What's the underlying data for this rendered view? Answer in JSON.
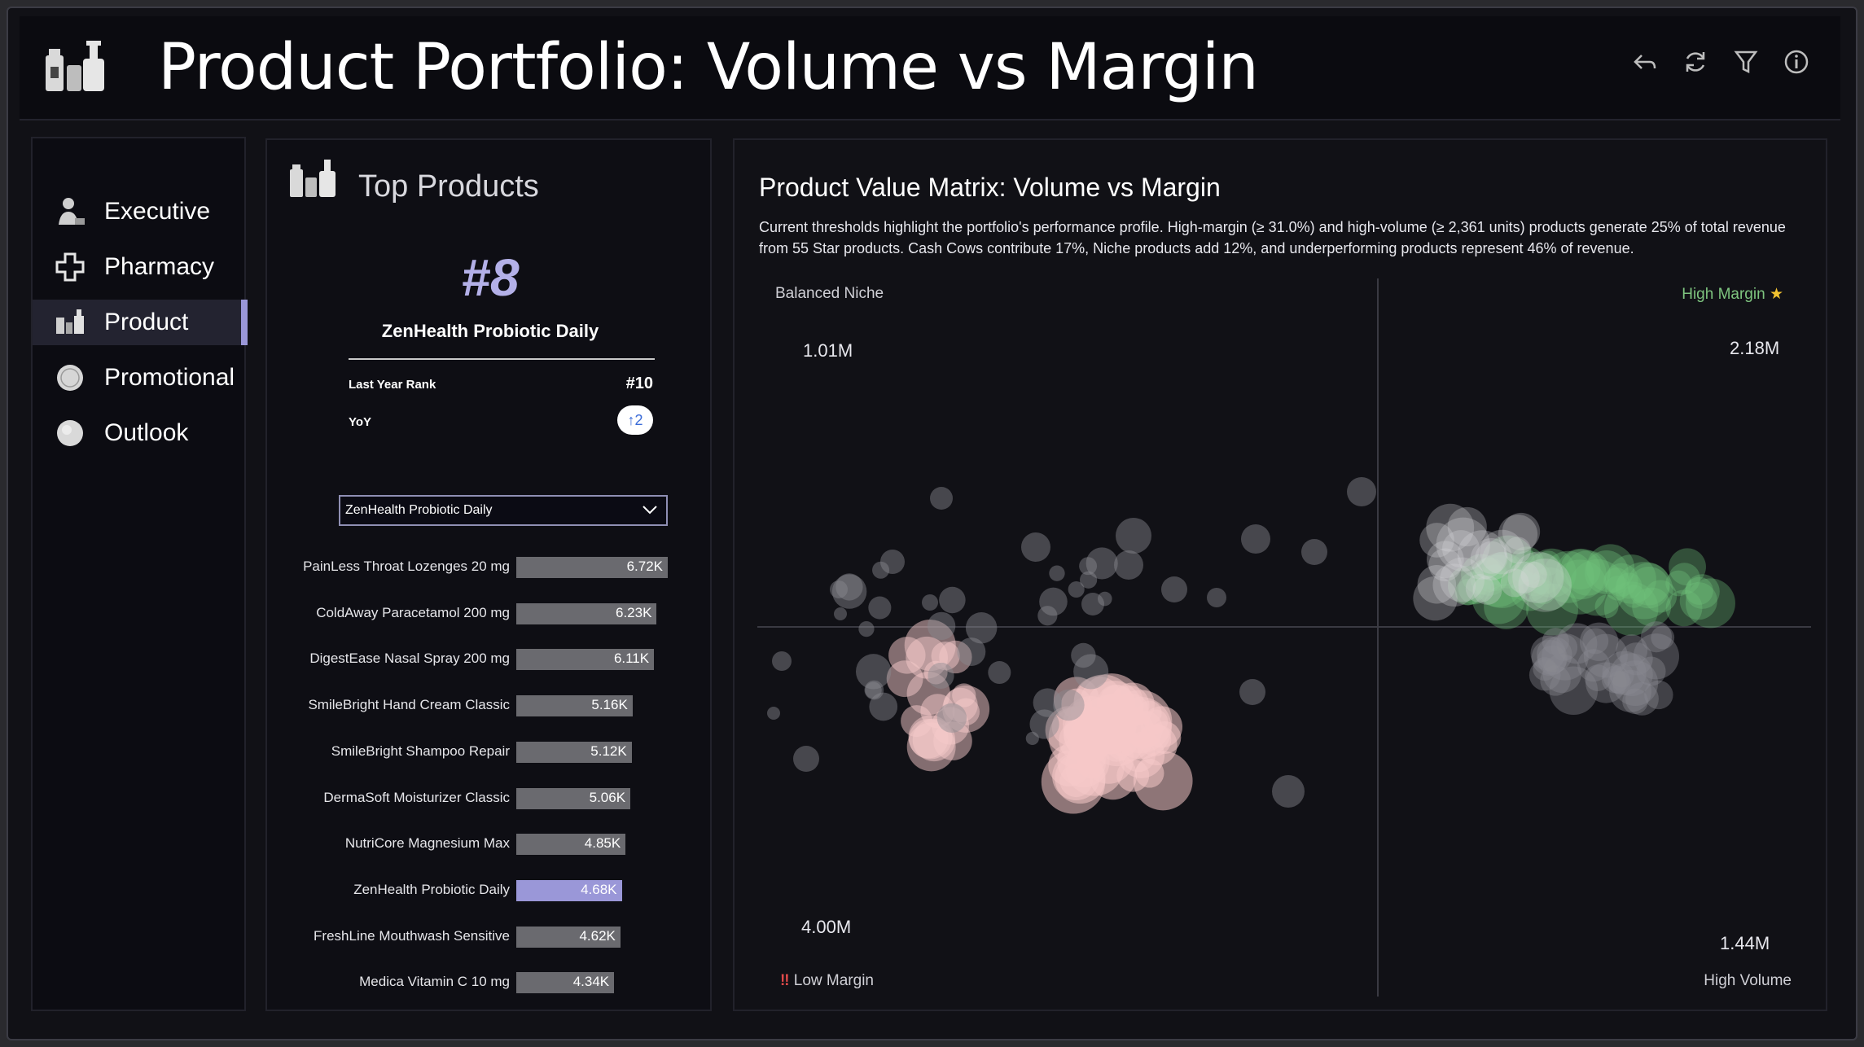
{
  "header": {
    "title": "Product Portfolio: Volume vs Margin",
    "icons": [
      "back-arrow-icon",
      "refresh-icon",
      "filter-icon",
      "info-icon"
    ]
  },
  "sidebar": {
    "items": [
      {
        "label": "Executive",
        "icon": "executive-icon",
        "active": false
      },
      {
        "label": "Pharmacy",
        "icon": "pharmacy-cross-icon",
        "active": false
      },
      {
        "label": "Product",
        "icon": "product-bottles-icon",
        "active": true
      },
      {
        "label": "Promotional",
        "icon": "promotional-badge-icon",
        "active": false
      },
      {
        "label": "Outlook",
        "icon": "outlook-circle-icon",
        "active": false
      }
    ]
  },
  "top_products": {
    "title": "Top Products",
    "rank": "#8",
    "product_name": "ZenHealth Probiotic Daily",
    "last_year_rank_label": "Last Year Rank",
    "last_year_rank_value": "#10",
    "yoy_label": "YoY",
    "yoy_value": "↑2",
    "dropdown_value": "ZenHealth Probiotic Daily",
    "bars": [
      {
        "label": "PainLess Throat Lozenges 20 mg",
        "value_label": "6.72K",
        "value": 6720,
        "highlight": false
      },
      {
        "label": "ColdAway Paracetamol 200 mg",
        "value_label": "6.23K",
        "value": 6230,
        "highlight": false
      },
      {
        "label": "DigestEase Nasal Spray 200 mg",
        "value_label": "6.11K",
        "value": 6110,
        "highlight": false
      },
      {
        "label": "SmileBright Hand Cream Classic",
        "value_label": "5.16K",
        "value": 5160,
        "highlight": false
      },
      {
        "label": "SmileBright Shampoo Repair",
        "value_label": "5.12K",
        "value": 5120,
        "highlight": false
      },
      {
        "label": "DermaSoft Moisturizer Classic",
        "value_label": "5.06K",
        "value": 5060,
        "highlight": false
      },
      {
        "label": "NutriCore Magnesium Max",
        "value_label": "4.85K",
        "value": 4850,
        "highlight": false
      },
      {
        "label": "ZenHealth Probiotic Daily",
        "value_label": "4.68K",
        "value": 4680,
        "highlight": true
      },
      {
        "label": "FreshLine Mouthwash Sensitive",
        "value_label": "4.62K",
        "value": 4620,
        "highlight": false
      },
      {
        "label": "Medica Vitamin C 10 mg",
        "value_label": "4.34K",
        "value": 4340,
        "highlight": false
      }
    ]
  },
  "matrix": {
    "title": "Product Value Matrix: Volume vs Margin",
    "description": "Current thresholds highlight the portfolio's performance profile. High-margin (≥ 31.0%) and high-volume (≥ 2,361 units) products generate 25% of total revenue from 55 Star products. Cash Cows contribute 17%, Niche products add 12%, and underperforming products represent 46% of revenue.",
    "quadrants": {
      "top_left_label": "Balanced Niche",
      "top_left_value": "1.01M",
      "top_right_label": "High Margin",
      "top_right_value": "2.18M",
      "bottom_left_label": "Low Margin",
      "bottom_left_value": "4.00M",
      "bottom_right_label": "High Volume",
      "bottom_right_value": "1.44M"
    },
    "colors": {
      "star": "#6fc27a",
      "niche": "#f5c9c9",
      "gray": "#8a8a90",
      "accent": "#9a97d8",
      "high_margin_text": "#7ec47f",
      "low_margin_text": "#e04a4a",
      "star_icon": "#f2c230"
    }
  }
}
